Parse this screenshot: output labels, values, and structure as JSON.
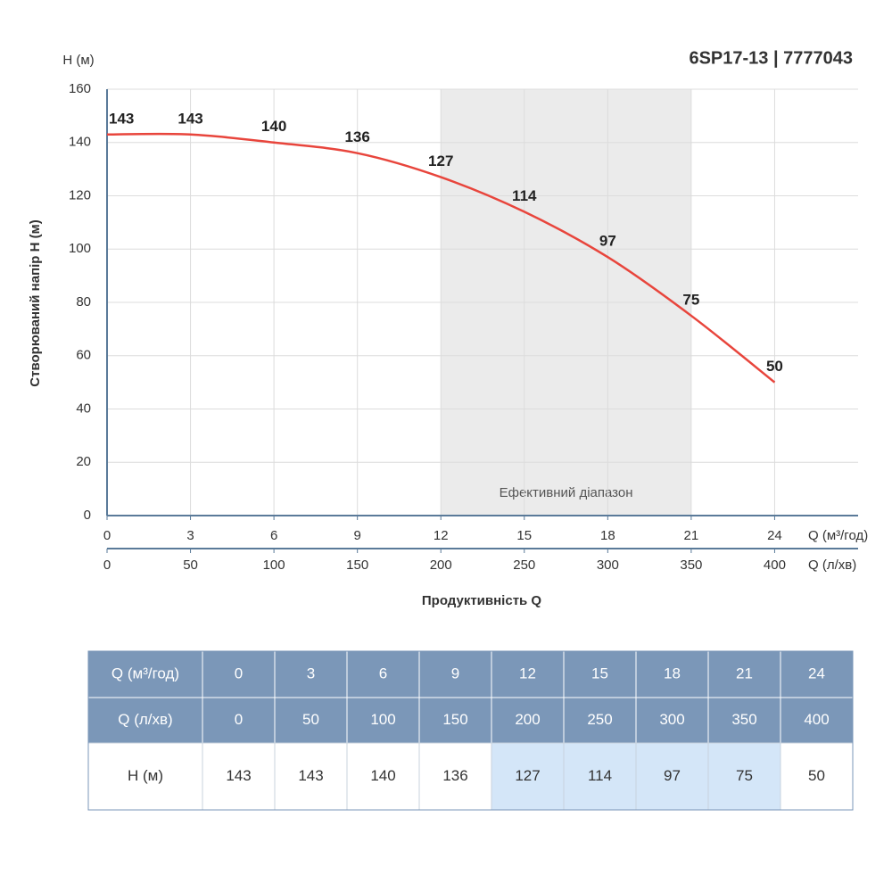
{
  "chart_data": {
    "type": "line",
    "title": "6SP17-13 | 7777043",
    "y_unit_label": "H (м)",
    "ylabel": "Створюваний напір H (м)",
    "xlabel": "Продуктивність Q",
    "x_unit_label": "Q (м³/год)",
    "x2_unit_label": "Q (л/хв)",
    "x": [
      0,
      3,
      6,
      9,
      12,
      15,
      18,
      21,
      24
    ],
    "values": [
      143,
      143,
      140,
      136,
      127,
      114,
      97,
      75,
      50
    ],
    "color": "#e8453c",
    "xlim": [
      0,
      27
    ],
    "xticks": [
      0,
      3,
      6,
      9,
      12,
      15,
      18,
      21,
      24
    ],
    "x2lim": [
      0,
      450
    ],
    "x2ticks": [
      0,
      50,
      100,
      150,
      200,
      250,
      300,
      350,
      400
    ],
    "ylim": [
      0,
      160
    ],
    "yticks": [
      0,
      20,
      40,
      60,
      80,
      100,
      120,
      140,
      160
    ],
    "grid": true,
    "highlight": {
      "label": "Ефективний діапазон",
      "range": [
        12,
        21
      ]
    }
  },
  "table": {
    "rows": [
      [
        "Q (м³/год)",
        "0",
        "3",
        "6",
        "9",
        "12",
        "15",
        "18",
        "21",
        "24"
      ],
      [
        "Q (л/хв)",
        "0",
        "50",
        "100",
        "150",
        "200",
        "250",
        "300",
        "350",
        "400"
      ],
      [
        "H (м)",
        "143",
        "143",
        "140",
        "136",
        "127",
        "114",
        "97",
        "75",
        "50"
      ]
    ]
  }
}
